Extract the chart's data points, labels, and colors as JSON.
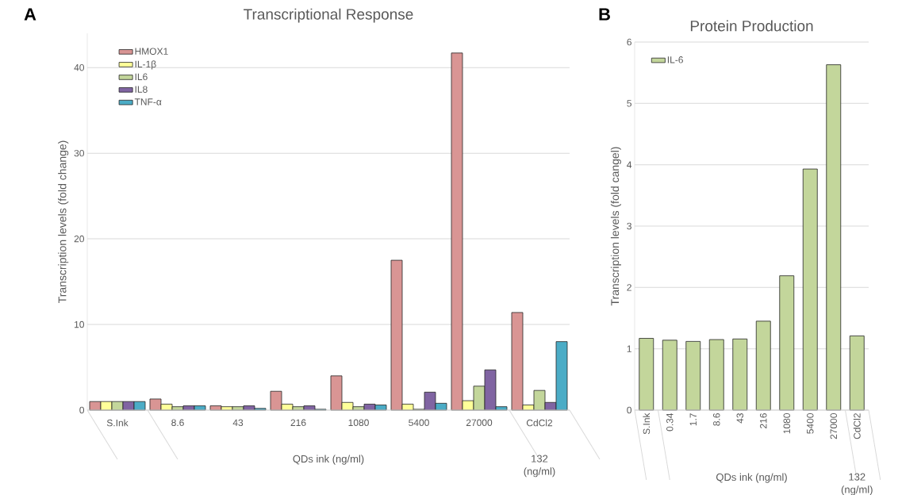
{
  "chart_data": [
    {
      "type": "bar",
      "title": "Transcriptional Response",
      "ylabel": "Transcription levels (fold change)",
      "categories": [
        "S.Ink",
        "8.6",
        "43",
        "216",
        "1080",
        "5400",
        "27000",
        "CdCl2"
      ],
      "series": [
        {
          "name": "HMOX1",
          "color": "#d99594",
          "values": [
            1,
            1.3,
            0.5,
            2.2,
            4.0,
            17.5,
            41.7,
            11.4
          ]
        },
        {
          "name": "IL-1β",
          "color": "#ffff99",
          "values": [
            1,
            0.7,
            0.4,
            0.7,
            0.9,
            0.7,
            1.1,
            0.6
          ]
        },
        {
          "name": "IL6",
          "color": "#c3d69b",
          "values": [
            1,
            0.4,
            0.4,
            0.4,
            0.4,
            0.1,
            2.8,
            2.3
          ]
        },
        {
          "name": "IL8",
          "color": "#8064a2",
          "values": [
            1,
            0.5,
            0.5,
            0.5,
            0.7,
            2.1,
            4.7,
            0.9
          ]
        },
        {
          "name": "TNF-α",
          "color": "#4bacc6",
          "values": [
            1,
            0.5,
            0.2,
            0.1,
            0.6,
            0.8,
            0.4,
            8.0
          ]
        }
      ],
      "ylim": [
        0,
        44
      ],
      "yticks": [
        0,
        10,
        20,
        30,
        40
      ],
      "grid": "y",
      "legend": "top left",
      "annotations": [
        "A",
        "QDs ink (ng/ml)",
        "132 (ng/ml)"
      ]
    },
    {
      "type": "bar",
      "title": "Protein Production",
      "ylabel": "Transcription levels (fold cangel)",
      "categories": [
        "S.Ink",
        "0.34",
        "1.7",
        "8.6",
        "43",
        "216",
        "1080",
        "5400",
        "27000",
        "CdCl2"
      ],
      "series": [
        {
          "name": "IL-6",
          "color": "#c3d69b",
          "values": [
            1.17,
            1.14,
            1.12,
            1.15,
            1.16,
            1.45,
            2.19,
            3.93,
            5.63,
            1.21
          ]
        }
      ],
      "ylim": [
        0,
        6
      ],
      "yticks": [
        0,
        1,
        2,
        3,
        4,
        5,
        6
      ],
      "grid": "y",
      "legend": "top left",
      "annotations": [
        "B",
        "QDs ink (ng/ml)",
        "132 (ng/ml)"
      ]
    }
  ]
}
